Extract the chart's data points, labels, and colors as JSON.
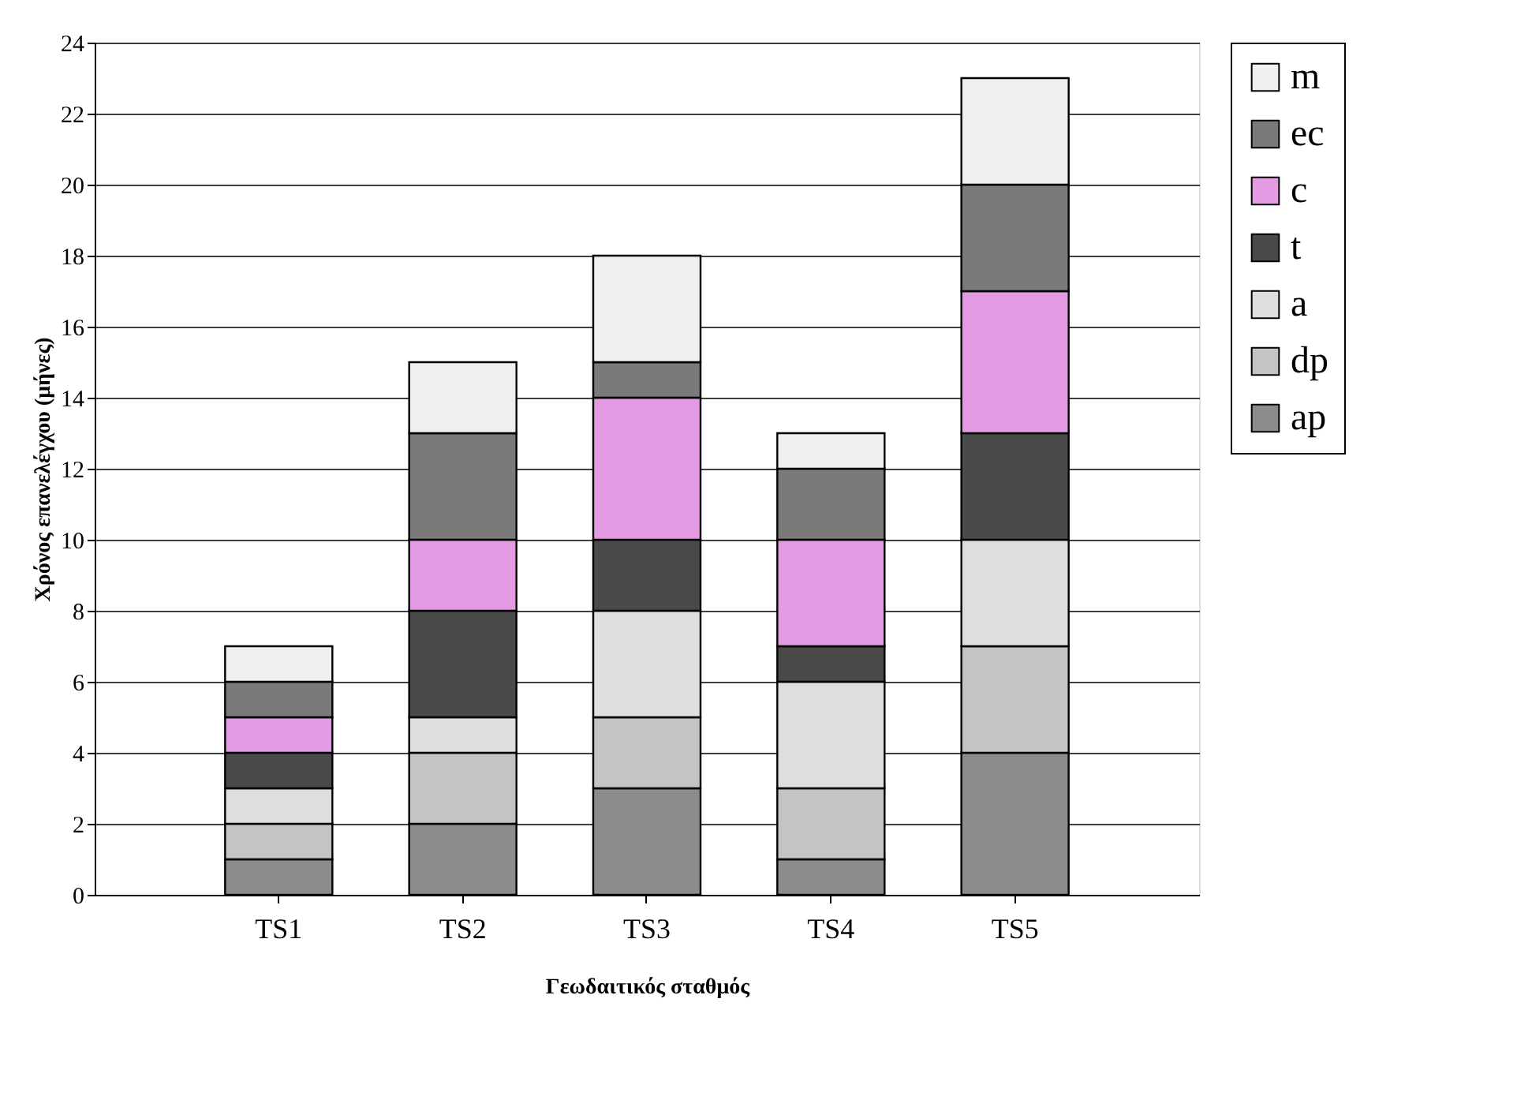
{
  "chart_data": {
    "type": "bar",
    "stacked": true,
    "xlabel": "Γεωδαιτικός σταθμός",
    "ylabel": "Χρόνος επανελέγχου (μήνες)",
    "categories": [
      "TS1",
      "TS2",
      "TS3",
      "TS4",
      "TS5"
    ],
    "series": [
      {
        "name": "ap",
        "color": "#8c8c8c",
        "values": [
          1,
          2,
          3,
          1,
          4
        ]
      },
      {
        "name": "dp",
        "color": "#c4c4c4",
        "values": [
          1,
          2,
          2,
          2,
          3
        ]
      },
      {
        "name": "a",
        "color": "#dedede",
        "values": [
          1,
          1,
          3,
          3,
          3
        ]
      },
      {
        "name": "t",
        "color": "#4a4a4a",
        "values": [
          1,
          3,
          2,
          1,
          3
        ]
      },
      {
        "name": "c",
        "color": "#e39be3",
        "values": [
          1,
          2,
          4,
          3,
          4
        ]
      },
      {
        "name": "ec",
        "color": "#7a7a7a",
        "values": [
          1,
          3,
          1,
          2,
          3
        ]
      },
      {
        "name": "m",
        "color": "#efefef",
        "values": [
          1,
          2,
          3,
          1,
          3
        ]
      }
    ],
    "ylim": [
      0,
      24
    ],
    "yticks": [
      0,
      2,
      4,
      6,
      8,
      10,
      12,
      14,
      16,
      18,
      20,
      22,
      24
    ],
    "grid": "y",
    "legend": "right"
  }
}
